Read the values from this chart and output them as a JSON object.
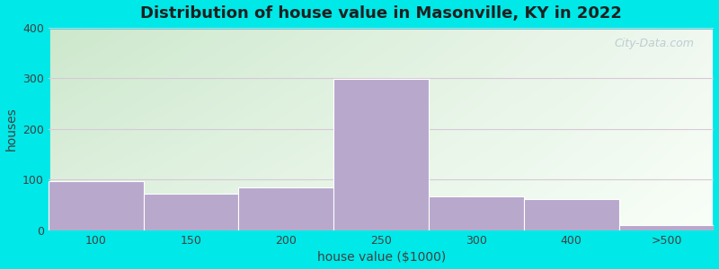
{
  "title": "Distribution of house value in Masonville, KY in 2022",
  "xlabel": "house value ($1000)",
  "ylabel": "houses",
  "bar_labels": [
    "100",
    "150",
    "200",
    "250",
    "300",
    "400",
    ">500"
  ],
  "bar_left_edges": [
    0,
    1,
    2,
    3,
    4,
    5,
    6
  ],
  "bar_values": [
    98,
    72,
    85,
    298,
    67,
    62,
    10
  ],
  "bar_color": "#b8a8cc",
  "bar_edgecolor": "#ffffff",
  "ylim": [
    0,
    400
  ],
  "yticks": [
    0,
    100,
    200,
    300,
    400
  ],
  "background_outer": "#00e8e8",
  "background_top_left": "#cce8cc",
  "background_top_right": "#eef8ee",
  "background_bottom_left": "#e0f0e0",
  "background_bottom_right": "#f8fff8",
  "grid_color": "#d8c8d8",
  "title_fontsize": 13,
  "axis_label_fontsize": 10,
  "tick_fontsize": 9,
  "watermark_text": "City-Data.com",
  "watermark_color": "#b8c8d0"
}
